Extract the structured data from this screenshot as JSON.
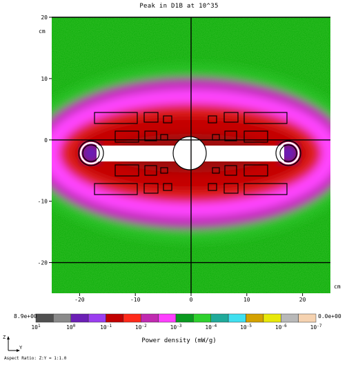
{
  "title": "Peak in D1B at 10^35",
  "chart_data": {
    "type": "heatmap",
    "title": "Peak in D1B at 10^35",
    "xunit": "cm",
    "yunit": "cm",
    "xlim": [
      -25,
      25
    ],
    "ylim": [
      -25,
      20
    ],
    "xticks": [
      -20,
      -10,
      0,
      10,
      20
    ],
    "yticks": [
      20,
      10,
      0,
      -10,
      -20
    ],
    "xtick_labels": [
      "-20",
      "-10",
      "0",
      "10",
      "20"
    ],
    "ytick_labels": [
      "20",
      "10",
      "0",
      "-10",
      "-20"
    ],
    "grid_lines": {
      "x": [
        0
      ],
      "y": [
        20,
        0,
        -20
      ]
    },
    "colorbar": {
      "label": "Power density (mW/g)",
      "min_label": "8.9e+00",
      "max_label": "0.0e+00",
      "tick_labels": [
        "10^1",
        "10^0",
        "10^-1",
        "10^-2",
        "10^-3",
        "10^-4",
        "10^-5",
        "10^-6",
        "10^-7"
      ],
      "colors": [
        "#505050",
        "#8a8a8a",
        "#6b1fb5",
        "#9b3ef0",
        "#c10000",
        "#ff2a1a",
        "#c02ab0",
        "#ff40ff",
        "#0a9a1f",
        "#2ed12e",
        "#1faa9a",
        "#40e0f0",
        "#d4a200",
        "#e8e80a",
        "#b8b8b8",
        "#f5d2b0"
      ]
    }
  },
  "axes_indicator": {
    "z": "Z",
    "y": "Y"
  },
  "aspect_ratio": "Aspect Ratio: Z:Y = 1:1.0"
}
